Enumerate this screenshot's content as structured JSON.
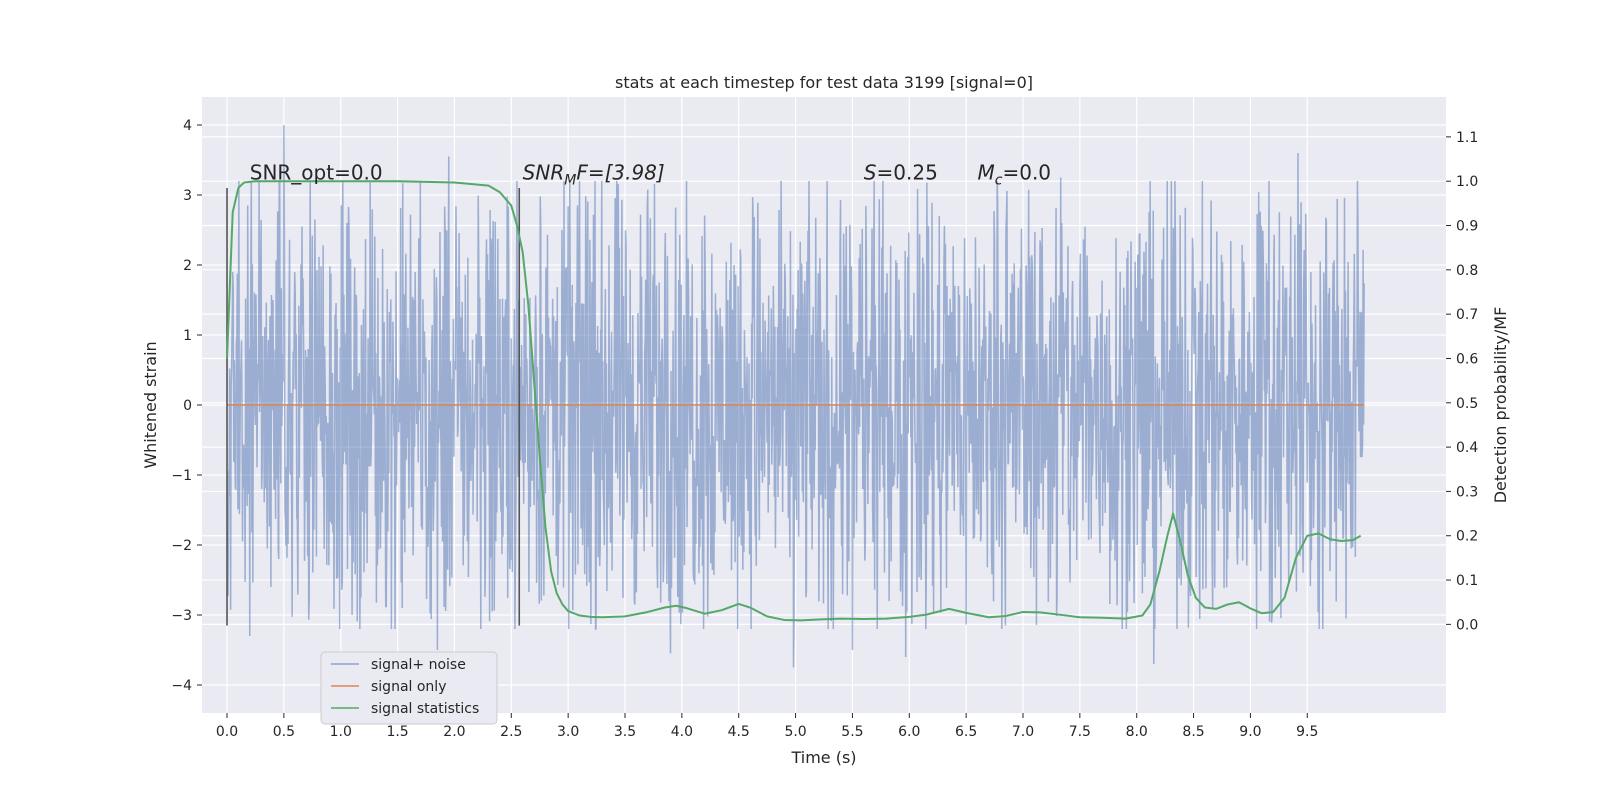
{
  "chart_data": {
    "type": "line",
    "title": "stats at each timestep for test data 3199 [signal=0]",
    "xlabel": "Time (s)",
    "ylabel": "Whitened strain",
    "ylabel_right": "Detection probability/MF",
    "xlim": [
      -0.22,
      10.72
    ],
    "ylim": [
      -4.4,
      4.4
    ],
    "ylim_right": [
      -0.2,
      1.19
    ],
    "x_ticks": [
      0.0,
      0.5,
      1.0,
      1.5,
      2.0,
      2.5,
      3.0,
      3.5,
      4.0,
      4.5,
      5.0,
      5.5,
      6.0,
      6.5,
      7.0,
      7.5,
      8.0,
      8.5,
      9.0,
      9.5
    ],
    "x_tick_labels": [
      "0.0",
      "0.5",
      "1.0",
      "1.5",
      "2.0",
      "2.5",
      "3.0",
      "3.5",
      "4.0",
      "4.5",
      "5.0",
      "5.5",
      "6.0",
      "6.5",
      "7.0",
      "7.5",
      "8.0",
      "8.5",
      "9.0",
      "9.5"
    ],
    "y_ticks": [
      -4,
      -3,
      -2,
      -1,
      0,
      1,
      2,
      3,
      4
    ],
    "y_tick_labels": [
      "−4",
      "−3",
      "−2",
      "−1",
      "0",
      "1",
      "2",
      "3",
      "4"
    ],
    "y_ticks_right": [
      0.0,
      0.1,
      0.2,
      0.3,
      0.4,
      0.5,
      0.6,
      0.7,
      0.8,
      0.9,
      1.0,
      1.1
    ],
    "y_tick_labels_right": [
      "0.0",
      "0.1",
      "0.2",
      "0.3",
      "0.4",
      "0.5",
      "0.6",
      "0.7",
      "0.8",
      "0.9",
      "1.0",
      "1.1"
    ],
    "grid": true,
    "legend_position": "lower-left",
    "series": [
      {
        "name": "signal+ noise",
        "axis": "left",
        "color": "#4c72b0",
        "kind": "noise",
        "x_range": [
          0.0,
          10.0
        ],
        "typical_range": [
          -1.9,
          1.9
        ],
        "peaks": [
          {
            "x": 0.5,
            "y": 4.0
          },
          {
            "x": 1.95,
            "y": 3.55
          },
          {
            "x": 9.42,
            "y": 3.6
          },
          {
            "x": 7.33,
            "y": 3.25
          },
          {
            "x": 1.1,
            "y": -3.0
          },
          {
            "x": 1.85,
            "y": -3.5
          },
          {
            "x": 3.9,
            "y": -3.55
          },
          {
            "x": 4.98,
            "y": -3.75
          },
          {
            "x": 5.5,
            "y": -3.5
          },
          {
            "x": 5.97,
            "y": -3.6
          },
          {
            "x": 8.15,
            "y": -3.7
          },
          {
            "x": 0.2,
            "y": -3.3
          }
        ]
      },
      {
        "name": "signal only",
        "axis": "left",
        "color": "#dd8452",
        "x": [
          0.0,
          10.0
        ],
        "y": [
          0.0,
          0.0
        ]
      },
      {
        "name": "signal statistics",
        "axis": "right",
        "color": "#55a868",
        "x": [
          0.0,
          0.05,
          0.1,
          0.15,
          0.25,
          0.5,
          1.0,
          1.5,
          2.0,
          2.3,
          2.4,
          2.5,
          2.55,
          2.6,
          2.65,
          2.7,
          2.75,
          2.8,
          2.85,
          2.9,
          2.95,
          3.0,
          3.1,
          3.2,
          3.3,
          3.5,
          3.7,
          3.85,
          3.95,
          4.05,
          4.2,
          4.35,
          4.5,
          4.6,
          4.75,
          4.9,
          5.05,
          5.2,
          5.4,
          5.6,
          5.8,
          6.0,
          6.15,
          6.35,
          6.5,
          6.7,
          6.85,
          7.0,
          7.15,
          7.35,
          7.5,
          7.7,
          7.9,
          8.05,
          8.12,
          8.2,
          8.27,
          8.32,
          8.38,
          8.45,
          8.52,
          8.6,
          8.7,
          8.8,
          8.9,
          9.0,
          9.1,
          9.2,
          9.3,
          9.4,
          9.5,
          9.6,
          9.7,
          9.8,
          9.9,
          9.97
        ],
        "y": [
          0.6,
          0.93,
          0.985,
          0.997,
          1.0,
          1.0,
          1.0,
          1.0,
          0.997,
          0.99,
          0.975,
          0.945,
          0.9,
          0.84,
          0.72,
          0.55,
          0.38,
          0.22,
          0.12,
          0.07,
          0.045,
          0.03,
          0.02,
          0.017,
          0.016,
          0.018,
          0.028,
          0.038,
          0.042,
          0.036,
          0.024,
          0.032,
          0.046,
          0.038,
          0.018,
          0.01,
          0.009,
          0.011,
          0.013,
          0.012,
          0.013,
          0.017,
          0.022,
          0.035,
          0.026,
          0.016,
          0.019,
          0.028,
          0.027,
          0.021,
          0.016,
          0.015,
          0.013,
          0.02,
          0.045,
          0.12,
          0.2,
          0.25,
          0.19,
          0.11,
          0.06,
          0.038,
          0.035,
          0.045,
          0.05,
          0.036,
          0.025,
          0.028,
          0.06,
          0.15,
          0.2,
          0.205,
          0.192,
          0.188,
          0.19,
          0.2
        ]
      }
    ],
    "vlines": [
      {
        "x": 0.0,
        "y0": -3.15,
        "y1": 3.1,
        "color": "#555555"
      },
      {
        "x": 2.57,
        "y0": -3.15,
        "y1": 3.1,
        "color": "#555555"
      }
    ],
    "annotations": [
      {
        "id": "snr-opt",
        "x": 0.2,
        "y": 3.22,
        "text": "SNR_opt=0.0"
      },
      {
        "id": "snr-mf",
        "x": 2.6,
        "y": 3.22,
        "text": "SNR_MF=[3.98]"
      },
      {
        "id": "s-value",
        "x": 5.6,
        "y": 3.22,
        "text": "S=0.25"
      },
      {
        "id": "mc-value",
        "x": 6.6,
        "y": 3.22,
        "text": "M_c=0.0"
      }
    ],
    "annotation_parts": {
      "snr_mf_base": "SNR",
      "snr_mf_sub": "M",
      "snr_mf_rest": "F=[3.98]",
      "s_symbol": "S",
      "s_rest": "=0.25",
      "mc_base": "M",
      "mc_sub": "c",
      "mc_rest": "=0.0"
    },
    "legend": [
      {
        "label": "signal+ noise",
        "color": "#4c72b0"
      },
      {
        "label": "signal only",
        "color": "#dd8452"
      },
      {
        "label": "signal statistics",
        "color": "#55a868"
      }
    ]
  }
}
